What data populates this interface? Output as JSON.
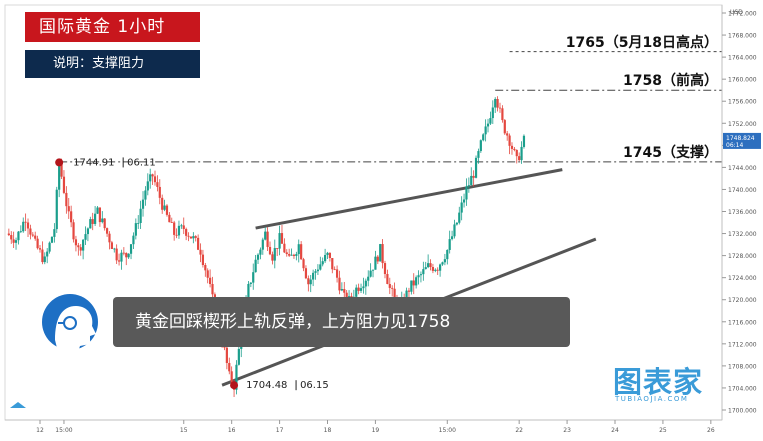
{
  "header": {
    "title": "国际黄金  1小时",
    "subtitle": "说明：支撑阻力"
  },
  "caption": "黄金回踩楔形上轨反弹，上方阻力见1758",
  "levels": [
    {
      "label": "1765（5月18日高点）",
      "price": 1765
    },
    {
      "label": "1758（前高）",
      "price": 1758
    },
    {
      "label": "1745（支撑）",
      "price": 1745
    }
  ],
  "annotations": [
    {
      "value": "1744.91",
      "date": "06.11"
    },
    {
      "value": "1704.48",
      "date": "06.15"
    }
  ],
  "price_box": {
    "value": "1748.824",
    "time": "06:14"
  },
  "currency": "USD",
  "logo": {
    "cn": "图表家",
    "en": "TUBIAOJIA.COM"
  },
  "chart_data": {
    "type": "candlestick",
    "ylim": [
      1698,
      1776
    ],
    "y_ticks": [
      1700,
      1704,
      1708,
      1712,
      1716,
      1720,
      1724,
      1728,
      1732,
      1736,
      1740,
      1744,
      1748,
      1752,
      1756,
      1760,
      1764,
      1768,
      1772
    ],
    "x_ticks": [
      "12",
      "15:00",
      "15",
      "16",
      "17",
      "18",
      "19",
      "15:00",
      "22",
      "23",
      "24",
      "25",
      "26"
    ],
    "trendlines": [
      {
        "name": "wedge-upper",
        "from": [
          16.5,
          1733
        ],
        "to": [
          22.9,
          1743.6
        ]
      },
      {
        "name": "wedge-lower",
        "from": [
          15.8,
          1704.5
        ],
        "to": [
          23.6,
          1731
        ]
      }
    ],
    "close_path": [
      [
        11.3,
        1732
      ],
      [
        11.5,
        1731
      ],
      [
        11.7,
        1735
      ],
      [
        11.9,
        1730
      ],
      [
        12.1,
        1727
      ],
      [
        12.3,
        1733
      ],
      [
        12.4,
        1744.9
      ],
      [
        12.6,
        1735
      ],
      [
        12.8,
        1729
      ],
      [
        13.0,
        1733
      ],
      [
        13.2,
        1736
      ],
      [
        13.4,
        1732
      ],
      [
        13.6,
        1728
      ],
      [
        13.8,
        1728
      ],
      [
        14.0,
        1733
      ],
      [
        14.2,
        1740
      ],
      [
        14.35,
        1742.5
      ],
      [
        14.6,
        1736
      ],
      [
        14.8,
        1732
      ],
      [
        15.0,
        1733
      ],
      [
        15.2,
        1731
      ],
      [
        15.35,
        1729
      ],
      [
        15.5,
        1724
      ],
      [
        15.65,
        1718
      ],
      [
        15.8,
        1713
      ],
      [
        15.95,
        1706
      ],
      [
        16.05,
        1704.5
      ],
      [
        16.2,
        1714
      ],
      [
        16.35,
        1722
      ],
      [
        16.5,
        1727
      ],
      [
        16.7,
        1732
      ],
      [
        16.85,
        1728
      ],
      [
        17.0,
        1731
      ],
      [
        17.2,
        1727
      ],
      [
        17.4,
        1730
      ],
      [
        17.6,
        1723
      ],
      [
        17.8,
        1726
      ],
      [
        18.0,
        1728
      ],
      [
        18.2,
        1724
      ],
      [
        18.4,
        1719
      ],
      [
        18.6,
        1722
      ],
      [
        18.8,
        1724
      ],
      [
        19.0,
        1727
      ],
      [
        19.1,
        1729
      ],
      [
        19.3,
        1722
      ],
      [
        19.5,
        1718
      ],
      [
        19.7,
        1722
      ],
      [
        19.9,
        1724
      ],
      [
        20.1,
        1726
      ],
      [
        20.3,
        1726
      ],
      [
        20.5,
        1729
      ],
      [
        20.7,
        1734
      ],
      [
        20.9,
        1740
      ],
      [
        21.05,
        1743
      ],
      [
        21.2,
        1748
      ],
      [
        21.35,
        1752
      ],
      [
        21.5,
        1757.5
      ],
      [
        21.65,
        1752
      ],
      [
        21.8,
        1749
      ],
      [
        21.95,
        1745
      ],
      [
        22.1,
        1748.8
      ]
    ]
  }
}
